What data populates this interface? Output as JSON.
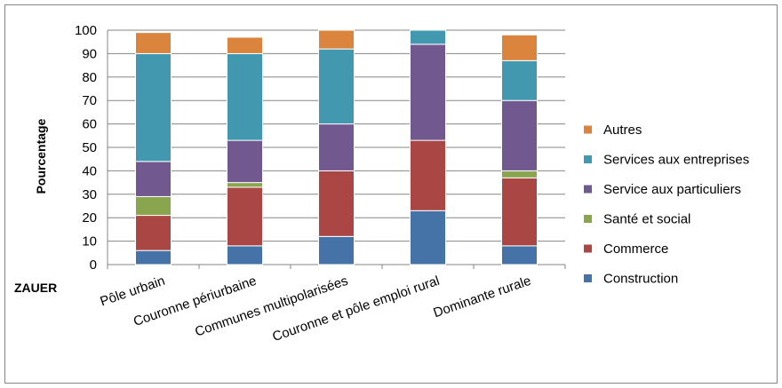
{
  "chart_data": {
    "type": "stacked-bar",
    "title": "",
    "xlabel": "ZAUER",
    "ylabel": "Pourcentage",
    "ylim": [
      0,
      100
    ],
    "yticks": [
      0,
      10,
      20,
      30,
      40,
      50,
      60,
      70,
      80,
      90,
      100
    ],
    "grid": true,
    "legend_position": "right",
    "categories": [
      "Pôle urbain",
      "Couronne périurbaine",
      "Communes multipolarisées",
      "Couronne et pôle emploi rural",
      "Dominante rurale"
    ],
    "series": [
      {
        "name": "Construction",
        "color": "#4673A7",
        "values": [
          6,
          8,
          12,
          23,
          8
        ]
      },
      {
        "name": "Commerce",
        "color": "#AA4643",
        "values": [
          15,
          25,
          28,
          30,
          29
        ]
      },
      {
        "name": "Santé et social",
        "color": "#89A54E",
        "values": [
          8,
          2,
          0,
          0,
          3
        ]
      },
      {
        "name": "Service aux particuliers",
        "color": "#71588F",
        "values": [
          15,
          18,
          20,
          41,
          30
        ]
      },
      {
        "name": "Services aux entreprises",
        "color": "#4198AF",
        "values": [
          46,
          37,
          32,
          6,
          17
        ]
      },
      {
        "name": "Autres",
        "color": "#DB843D",
        "values": [
          9,
          7,
          8,
          0,
          11
        ]
      }
    ],
    "legend_order": [
      "Autres",
      "Services aux entreprises",
      "Service aux particuliers",
      "Santé et social",
      "Commerce",
      "Construction"
    ]
  }
}
